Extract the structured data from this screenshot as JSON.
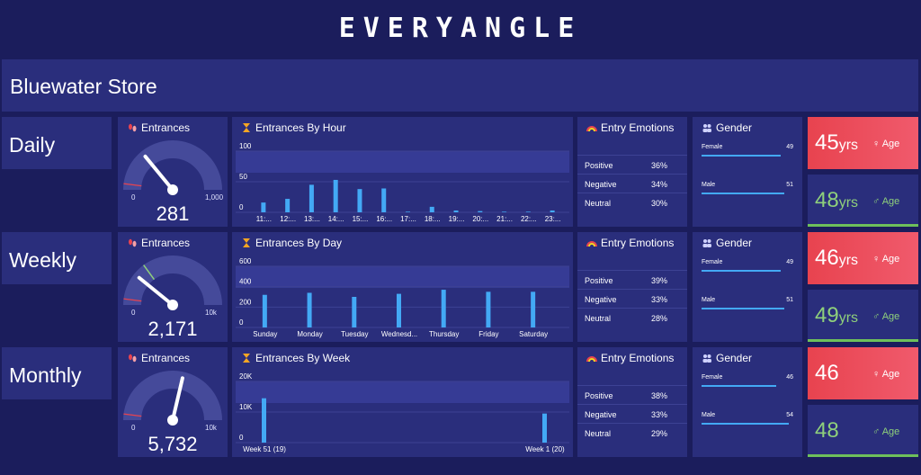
{
  "brand": "EVERYANGLE",
  "store": "Bluewater Store",
  "panel_titles": {
    "entrances": "Entrances",
    "emotions": "Entry Emotions",
    "gender": "Gender",
    "age": "Age",
    "age_unit": "yrs"
  },
  "rows": [
    {
      "period": "Daily",
      "gauge": {
        "value": 281,
        "display": "281",
        "min_label": "0",
        "max_label": "1,000",
        "max": 1000
      },
      "chart": {
        "title": "Entrances By Hour",
        "y_ticks": [
          "100",
          "50",
          "0"
        ],
        "ylim": [
          0,
          100
        ],
        "categories": [
          "11:...",
          "12:...",
          "13:...",
          "14:...",
          "15:...",
          "16:...",
          "17:...",
          "18:...",
          "19:...",
          "20:...",
          "21:...",
          "22:...",
          "23:..."
        ],
        "values": [
          16,
          22,
          45,
          53,
          38,
          39,
          1,
          9,
          3,
          2,
          1,
          1,
          3
        ]
      },
      "emotions": [
        {
          "label": "Positive",
          "value": "36%"
        },
        {
          "label": "Negative",
          "value": "34%"
        },
        {
          "label": "Neutral",
          "value": "30%"
        }
      ],
      "gender": [
        {
          "label": "Female",
          "value": "49",
          "pct": 49
        },
        {
          "label": "Male",
          "value": "51",
          "pct": 51
        }
      ],
      "age": {
        "female": "45",
        "male": "48",
        "female_unit": "yrs",
        "male_unit": "yrs"
      }
    },
    {
      "period": "Weekly",
      "gauge": {
        "value": 2171,
        "display": "2,171",
        "min_label": "0",
        "max_label": "10k",
        "max": 10000
      },
      "chart": {
        "title": "Entrances By Day",
        "y_ticks": [
          "600",
          "400",
          "200",
          "0"
        ],
        "ylim": [
          0,
          600
        ],
        "categories": [
          "Sunday",
          "Monday",
          "Tuesday",
          "Wednesd...",
          "Thursday",
          "Friday",
          "Saturday"
        ],
        "values": [
          320,
          340,
          300,
          330,
          370,
          350,
          350
        ]
      },
      "emotions": [
        {
          "label": "Positive",
          "value": "39%"
        },
        {
          "label": "Negative",
          "value": "33%"
        },
        {
          "label": "Neutral",
          "value": "28%"
        }
      ],
      "gender": [
        {
          "label": "Female",
          "value": "49",
          "pct": 49
        },
        {
          "label": "Male",
          "value": "51",
          "pct": 51
        }
      ],
      "age": {
        "female": "46",
        "male": "49",
        "female_unit": "yrs",
        "male_unit": "yrs"
      }
    },
    {
      "period": "Monthly",
      "gauge": {
        "value": 5732,
        "display": "5,732",
        "min_label": "0",
        "max_label": "10k",
        "max": 10000
      },
      "chart": {
        "title": "Entrances By Week",
        "y_ticks": [
          "20K",
          "10K",
          "0"
        ],
        "ylim": [
          0,
          20000
        ],
        "categories": [
          "Week 51 (19)",
          "Week 1 (20)"
        ],
        "values": [
          14500,
          9500
        ]
      },
      "emotions": [
        {
          "label": "Positive",
          "value": "38%"
        },
        {
          "label": "Negative",
          "value": "33%"
        },
        {
          "label": "Neutral",
          "value": "29%"
        }
      ],
      "gender": [
        {
          "label": "Female",
          "value": "46",
          "pct": 46
        },
        {
          "label": "Male",
          "value": "54",
          "pct": 54
        }
      ],
      "age": {
        "female": "46",
        "male": "48",
        "female_unit": "",
        "male_unit": ""
      }
    }
  ],
  "colors": {
    "background": "#1b1d5c",
    "panel": "#2a2e7c",
    "bar": "#43a9f5",
    "female": "#e8434f",
    "male": "#8fd07b"
  }
}
